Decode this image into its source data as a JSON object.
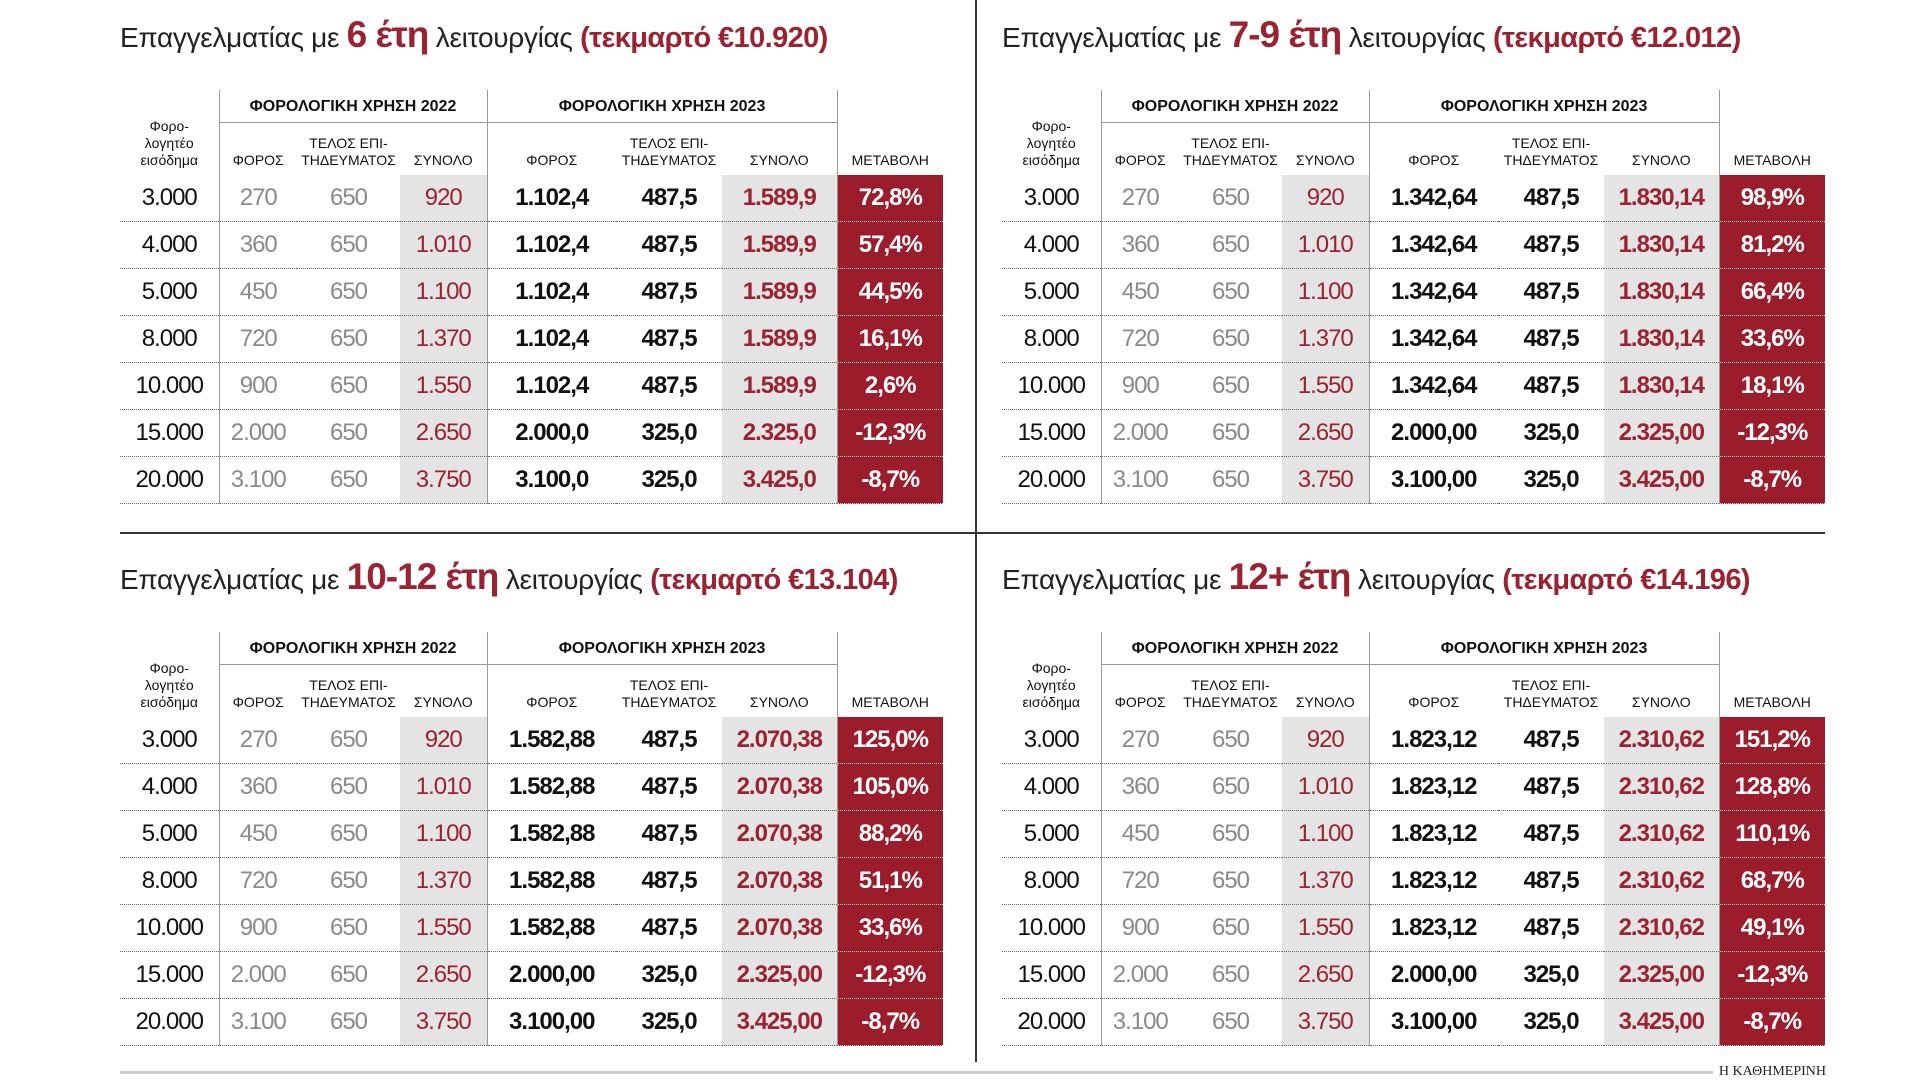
{
  "table_header": {
    "income": "Φορο-\nλογητέο\nεισόδημα",
    "year_2022": "ΦΟΡΟΛΟΓΙΚΗ ΧΡΗΣΗ 2022",
    "year_2023": "ΦΟΡΟΛΟΓΙΚΗ ΧΡΗΣΗ 2023",
    "tax": "ΦΟΡΟΣ",
    "fee": "ΤΕΛΟΣ ΕΠΙ-\nΤΗΔΕΥΜΑΤΟΣ",
    "total": "ΣΥΝΟΛΟ",
    "change": "ΜΕΤΑΒΟΛΗ"
  },
  "panels": [
    {
      "title": {
        "prefix": "Επαγγελματίας με",
        "years": "6 έτη",
        "suffix": "λειτουργίας",
        "presumed": "(τεκμαρτό €10.920)"
      },
      "rows": [
        [
          "3.000",
          "270",
          "650",
          "920",
          "1.102,4",
          "487,5",
          "1.589,9",
          "72,8%"
        ],
        [
          "4.000",
          "360",
          "650",
          "1.010",
          "1.102,4",
          "487,5",
          "1.589,9",
          "57,4%"
        ],
        [
          "5.000",
          "450",
          "650",
          "1.100",
          "1.102,4",
          "487,5",
          "1.589,9",
          "44,5%"
        ],
        [
          "8.000",
          "720",
          "650",
          "1.370",
          "1.102,4",
          "487,5",
          "1.589,9",
          "16,1%"
        ],
        [
          "10.000",
          "900",
          "650",
          "1.550",
          "1.102,4",
          "487,5",
          "1.589,9",
          "2,6%"
        ],
        [
          "15.000",
          "2.000",
          "650",
          "2.650",
          "2.000,0",
          "325,0",
          "2.325,0",
          "-12,3%"
        ],
        [
          "20.000",
          "3.100",
          "650",
          "3.750",
          "3.100,0",
          "325,0",
          "3.425,0",
          "-8,7%"
        ]
      ]
    },
    {
      "title": {
        "prefix": "Επαγγελματίας με",
        "years": "7-9 έτη",
        "suffix": "λειτουργίας",
        "presumed": "(τεκμαρτό €12.012)"
      },
      "rows": [
        [
          "3.000",
          "270",
          "650",
          "920",
          "1.342,64",
          "487,5",
          "1.830,14",
          "98,9%"
        ],
        [
          "4.000",
          "360",
          "650",
          "1.010",
          "1.342,64",
          "487,5",
          "1.830,14",
          "81,2%"
        ],
        [
          "5.000",
          "450",
          "650",
          "1.100",
          "1.342,64",
          "487,5",
          "1.830,14",
          "66,4%"
        ],
        [
          "8.000",
          "720",
          "650",
          "1.370",
          "1.342,64",
          "487,5",
          "1.830,14",
          "33,6%"
        ],
        [
          "10.000",
          "900",
          "650",
          "1.550",
          "1.342,64",
          "487,5",
          "1.830,14",
          "18,1%"
        ],
        [
          "15.000",
          "2.000",
          "650",
          "2.650",
          "2.000,00",
          "325,0",
          "2.325,00",
          "-12,3%"
        ],
        [
          "20.000",
          "3.100",
          "650",
          "3.750",
          "3.100,00",
          "325,0",
          "3.425,00",
          "-8,7%"
        ]
      ]
    },
    {
      "title": {
        "prefix": "Επαγγελματίας με",
        "years": "10-12 έτη",
        "suffix": "λειτουργίας",
        "presumed": "(τεκμαρτό €13.104)"
      },
      "rows": [
        [
          "3.000",
          "270",
          "650",
          "920",
          "1.582,88",
          "487,5",
          "2.070,38",
          "125,0%"
        ],
        [
          "4.000",
          "360",
          "650",
          "1.010",
          "1.582,88",
          "487,5",
          "2.070,38",
          "105,0%"
        ],
        [
          "5.000",
          "450",
          "650",
          "1.100",
          "1.582,88",
          "487,5",
          "2.070,38",
          "88,2%"
        ],
        [
          "8.000",
          "720",
          "650",
          "1.370",
          "1.582,88",
          "487,5",
          "2.070,38",
          "51,1%"
        ],
        [
          "10.000",
          "900",
          "650",
          "1.550",
          "1.582,88",
          "487,5",
          "2.070,38",
          "33,6%"
        ],
        [
          "15.000",
          "2.000",
          "650",
          "2.650",
          "2.000,00",
          "325,0",
          "2.325,00",
          "-12,3%"
        ],
        [
          "20.000",
          "3.100",
          "650",
          "3.750",
          "3.100,00",
          "325,0",
          "3.425,00",
          "-8,7%"
        ]
      ]
    },
    {
      "title": {
        "prefix": "Επαγγελματίας με",
        "years": "12+ έτη",
        "suffix": "λειτουργίας",
        "presumed": "(τεκμαρτό €14.196)"
      },
      "rows": [
        [
          "3.000",
          "270",
          "650",
          "920",
          "1.823,12",
          "487,5",
          "2.310,62",
          "151,2%"
        ],
        [
          "4.000",
          "360",
          "650",
          "1.010",
          "1.823,12",
          "487,5",
          "2.310,62",
          "128,8%"
        ],
        [
          "5.000",
          "450",
          "650",
          "1.100",
          "1.823,12",
          "487,5",
          "2.310,62",
          "110,1%"
        ],
        [
          "8.000",
          "720",
          "650",
          "1.370",
          "1.823,12",
          "487,5",
          "2.310,62",
          "68,7%"
        ],
        [
          "10.000",
          "900",
          "650",
          "1.550",
          "1.823,12",
          "487,5",
          "2.310,62",
          "49,1%"
        ],
        [
          "15.000",
          "2.000",
          "650",
          "2.650",
          "2.000,00",
          "325,0",
          "2.325,00",
          "-12,3%"
        ],
        [
          "20.000",
          "3.100",
          "650",
          "3.750",
          "3.100,00",
          "325,0",
          "3.425,00",
          "-8,7%"
        ]
      ]
    }
  ],
  "footer": "Η ΚΑΘΗΜΕΡΙΝΗ"
}
